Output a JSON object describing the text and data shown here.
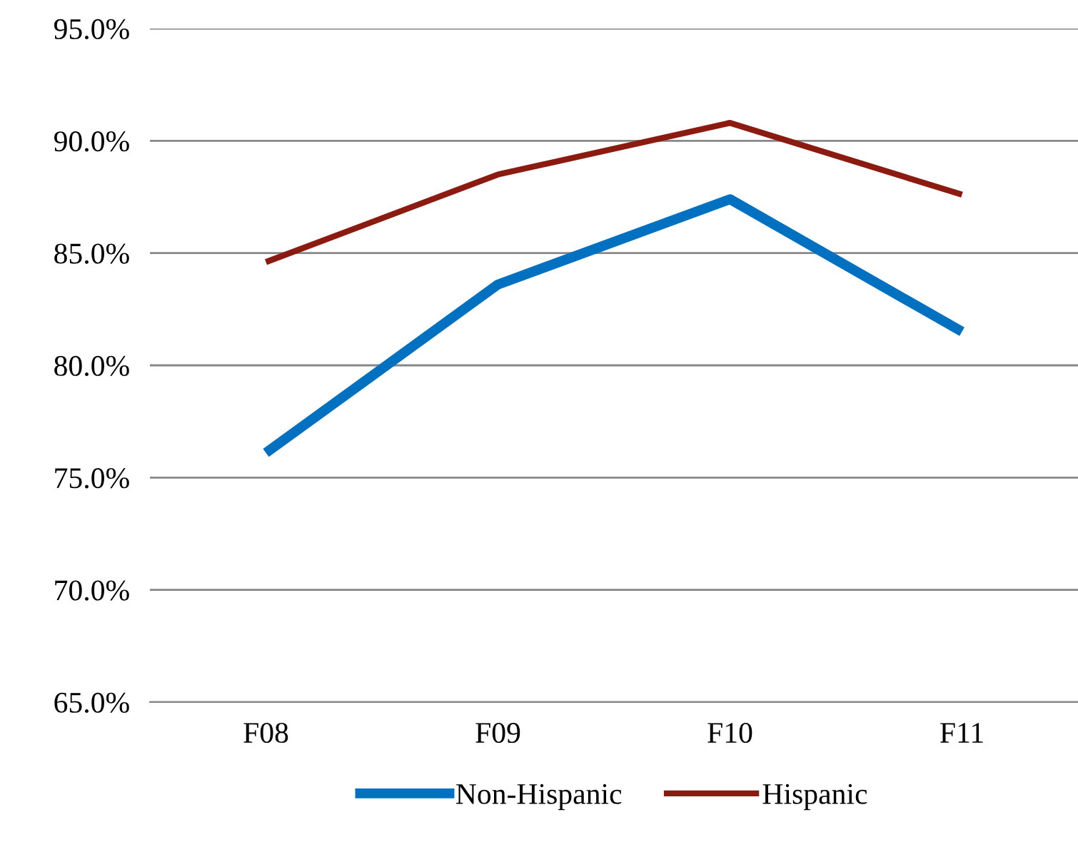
{
  "chart_data": {
    "type": "line",
    "categories": [
      "F08",
      "F09",
      "F10",
      "F11"
    ],
    "series": [
      {
        "name": "Non-Hispanic",
        "color": "#0070c0",
        "values": [
          76.1,
          83.6,
          87.4,
          81.5
        ]
      },
      {
        "name": "Hispanic",
        "color": "#8b1a10",
        "values": [
          84.6,
          88.5,
          90.8,
          87.6
        ]
      }
    ],
    "ylim": [
      65,
      95
    ],
    "yticks": [
      {
        "value": 65,
        "label": "65.0%"
      },
      {
        "value": 70,
        "label": "70.0%"
      },
      {
        "value": 75,
        "label": "75.0%"
      },
      {
        "value": 80,
        "label": "80.0%"
      },
      {
        "value": 85,
        "label": "85.0%"
      },
      {
        "value": 90,
        "label": "90.0%"
      },
      {
        "value": 95,
        "label": "95.0%"
      }
    ],
    "grid": "y",
    "legend": "bottom",
    "marker": "none",
    "line_style": "solid"
  }
}
